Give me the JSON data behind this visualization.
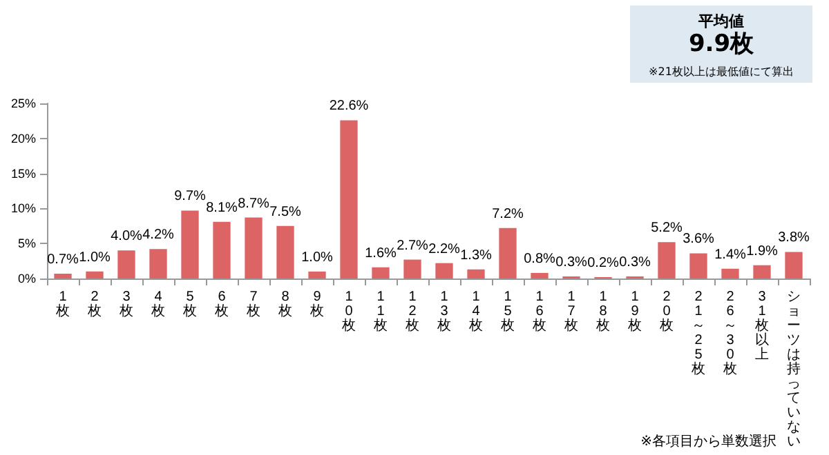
{
  "chart_data": {
    "type": "bar",
    "categories": [
      "1枚",
      "2枚",
      "3枚",
      "4枚",
      "5枚",
      "6枚",
      "7枚",
      "8枚",
      "9枚",
      "10枚",
      "11枚",
      "12枚",
      "13枚",
      "14枚",
      "15枚",
      "16枚",
      "17枚",
      "18枚",
      "19枚",
      "20枚",
      "21～25枚",
      "26～30枚",
      "31枚以上",
      "ショーツは持っていない"
    ],
    "values": [
      0.7,
      1.0,
      4.0,
      4.2,
      9.7,
      8.1,
      8.7,
      7.5,
      1.0,
      22.6,
      1.6,
      2.7,
      2.2,
      1.3,
      7.2,
      0.8,
      0.3,
      0.2,
      0.3,
      5.2,
      3.6,
      1.4,
      1.9,
      3.8
    ],
    "value_labels": [
      "0.7%",
      "1.0%",
      "4.0%",
      "4.2%",
      "9.7%",
      "8.1%",
      "8.7%",
      "7.5%",
      "1.0%",
      "22.6%",
      "1.6%",
      "2.7%",
      "2.2%",
      "1.3%",
      "7.2%",
      "0.8%",
      "0.3%",
      "0.2%",
      "0.3%",
      "5.2%",
      "3.6%",
      "1.4%",
      "1.9%",
      "3.8%"
    ],
    "color": "#dc6464",
    "ylim": [
      0,
      25
    ],
    "yticks": [
      {
        "value": 0,
        "label": "0%"
      },
      {
        "value": 5,
        "label": "5%"
      },
      {
        "value": 10,
        "label": "10%"
      },
      {
        "value": 15,
        "label": "15%"
      },
      {
        "value": 20,
        "label": "20%"
      },
      {
        "value": 25,
        "label": "25%"
      }
    ],
    "annotations": [
      "平均値",
      "9.9枚",
      "※21枚以上は最低値にて算出",
      "※各項目から単数選択"
    ]
  }
}
